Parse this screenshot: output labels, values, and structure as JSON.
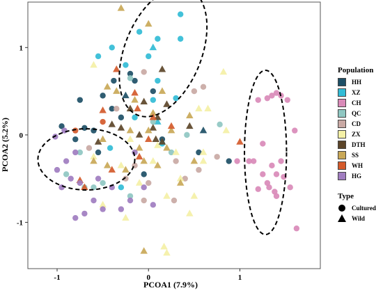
{
  "chart_data": {
    "type": "scatter",
    "xlabel": "PCOA1 (7.9%)",
    "ylabel": "PCOA2 (5.2%)",
    "xlim": [
      -1.32,
      1.88
    ],
    "ylim": [
      -1.53,
      1.52
    ],
    "x_ticks": [
      -1,
      0,
      1
    ],
    "y_ticks": [
      -1,
      0,
      1
    ],
    "grid": false,
    "legend_position": "right",
    "populations": [
      {
        "name": "HH",
        "color": "#1d4f66"
      },
      {
        "name": "XZ",
        "color": "#32bcd6"
      },
      {
        "name": "CH",
        "color": "#d98ab8"
      },
      {
        "name": "QC",
        "color": "#8fc7c2"
      },
      {
        "name": "CD",
        "color": "#c9a9a4"
      },
      {
        "name": "ZX",
        "color": "#f4f0a6"
      },
      {
        "name": "DTH",
        "color": "#5c4529"
      },
      {
        "name": "SS",
        "color": "#c9a857"
      },
      {
        "name": "WH",
        "color": "#d45a2b"
      },
      {
        "name": "HG",
        "color": "#a07dc0"
      }
    ],
    "types": [
      {
        "name": "Cultured",
        "marker": "circle"
      },
      {
        "name": "Wild",
        "marker": "triangle"
      }
    ],
    "ellipses": [
      {
        "cx": 0.16,
        "cy": 0.95,
        "rx": 0.42,
        "ry": 0.78,
        "rotation_deg": 22
      },
      {
        "cx": -0.68,
        "cy": -0.28,
        "rx": 0.53,
        "ry": 0.35,
        "rotation_deg": 0
      },
      {
        "cx": 1.28,
        "cy": -0.2,
        "rx": 0.23,
        "ry": 0.94,
        "rotation_deg": 0
      }
    ],
    "series": [
      {
        "name": "HH",
        "type": "Cultured",
        "points": [
          [
            -0.4,
            0.3
          ],
          [
            -0.15,
            0.62
          ],
          [
            0.05,
            0.5
          ],
          [
            -0.5,
            0.45
          ],
          [
            -0.7,
            0.08
          ],
          [
            -0.95,
            0.1
          ],
          [
            -0.75,
            0.4
          ],
          [
            -0.38,
            0.62
          ],
          [
            -0.05,
            -0.45
          ],
          [
            -0.55,
            -0.2
          ],
          [
            -0.2,
            0.7
          ],
          [
            0.55,
            -0.2
          ],
          [
            0.88,
            -0.3
          ],
          [
            -0.6,
            0.05
          ],
          [
            -0.3,
            0.2
          ],
          [
            0.15,
            -0.05
          ],
          [
            -0.8,
            -0.05
          ]
        ]
      },
      {
        "name": "HH",
        "type": "Wild",
        "points": [
          [
            -0.25,
            0.45
          ],
          [
            0.6,
            0.05
          ]
        ]
      },
      {
        "name": "XZ",
        "type": "Cultured",
        "points": [
          [
            -0.4,
            1.0
          ],
          [
            -0.1,
            1.18
          ],
          [
            0.1,
            1.1
          ],
          [
            0.35,
            1.38
          ],
          [
            -0.25,
            0.8
          ],
          [
            0.1,
            0.62
          ],
          [
            0.3,
            0.42
          ],
          [
            -0.55,
            0.9
          ],
          [
            -0.3,
            -0.6
          ],
          [
            0.35,
            1.1
          ],
          [
            0.0,
            0.9
          ],
          [
            0.05,
            0.4
          ],
          [
            -0.42,
            -0.15
          ],
          [
            -0.15,
            0.2
          ],
          [
            0.15,
            -0.1
          ]
        ]
      },
      {
        "name": "XZ",
        "type": "Wild",
        "points": [
          [
            0.05,
            1.0
          ],
          [
            0.1,
            0.15
          ]
        ]
      },
      {
        "name": "CH",
        "type": "Cultured",
        "points": [
          [
            1.45,
            0.45
          ],
          [
            1.35,
            0.45
          ],
          [
            1.52,
            0.4
          ],
          [
            1.2,
            0.4
          ],
          [
            1.3,
            0.42
          ],
          [
            1.4,
            0.48
          ],
          [
            1.15,
            -0.3
          ],
          [
            1.25,
            -0.45
          ],
          [
            1.35,
            -0.35
          ],
          [
            1.4,
            -0.45
          ],
          [
            1.48,
            -0.48
          ],
          [
            1.3,
            -0.55
          ],
          [
            1.4,
            -0.7
          ],
          [
            1.55,
            -0.6
          ],
          [
            1.6,
            0.05
          ],
          [
            1.62,
            -1.07
          ],
          [
            1.25,
            -0.1
          ],
          [
            1.1,
            -0.3
          ],
          [
            1.45,
            -0.3
          ],
          [
            1.2,
            -0.62
          ],
          [
            1.32,
            -0.6
          ],
          [
            0.97,
            -0.3
          ],
          [
            1.38,
            -0.65
          ]
        ]
      },
      {
        "name": "QC",
        "type": "Cultured",
        "points": [
          [
            -0.9,
            -0.45
          ],
          [
            -0.7,
            -0.6
          ],
          [
            -0.2,
            0.65
          ],
          [
            0.42,
            0.0
          ],
          [
            0.78,
            0.12
          ],
          [
            -0.75,
            -0.2
          ],
          [
            -0.5,
            -0.55
          ],
          [
            -0.2,
            -0.7
          ],
          [
            0.25,
            -0.2
          ],
          [
            0.05,
            0.15
          ],
          [
            -0.6,
            -0.6
          ]
        ]
      },
      {
        "name": "CD",
        "type": "Cultured",
        "points": [
          [
            0.6,
            0.55
          ],
          [
            0.5,
            0.5
          ],
          [
            -0.15,
            -0.35
          ],
          [
            -0.25,
            -0.5
          ],
          [
            0.3,
            -0.3
          ],
          [
            0.55,
            -0.4
          ],
          [
            -0.65,
            -0.15
          ],
          [
            -0.35,
            0.3
          ],
          [
            0.0,
            -0.55
          ],
          [
            -0.05,
            -0.75
          ],
          [
            0.4,
            -0.5
          ],
          [
            0.75,
            -0.25
          ],
          [
            0.28,
            -0.75
          ],
          [
            -0.05,
            0.72
          ]
        ]
      },
      {
        "name": "ZX",
        "type": "Wild",
        "points": [
          [
            -0.6,
            -0.25
          ],
          [
            -0.2,
            -0.05
          ],
          [
            0.1,
            -0.12
          ],
          [
            -0.3,
            -0.35
          ],
          [
            0.05,
            -0.3
          ],
          [
            0.35,
            -0.5
          ],
          [
            0.6,
            -0.2
          ],
          [
            0.45,
            -0.9
          ],
          [
            -0.25,
            -0.95
          ],
          [
            -0.5,
            -0.8
          ],
          [
            0.2,
            -0.7
          ],
          [
            0.85,
            0.05
          ],
          [
            0.5,
            -0.7
          ],
          [
            -0.1,
            -0.55
          ],
          [
            -0.6,
            0.8
          ],
          [
            0.65,
            0.3
          ],
          [
            0.3,
            -0.2
          ],
          [
            0.17,
            -1.28
          ],
          [
            0.2,
            -1.35
          ],
          [
            0.55,
            0.3
          ],
          [
            0.6,
            -0.3
          ],
          [
            0.82,
            0.72
          ]
        ]
      },
      {
        "name": "DTH",
        "type": "Wild",
        "points": [
          [
            -0.3,
            0.08
          ],
          [
            0.05,
            0.08
          ],
          [
            0.15,
            -0.08
          ],
          [
            0.2,
            0.35
          ],
          [
            -0.4,
            0.12
          ],
          [
            -0.05,
            0.38
          ],
          [
            -0.55,
            -0.08
          ],
          [
            0.1,
            0.2
          ],
          [
            -0.1,
            0.0
          ],
          [
            0.15,
            0.75
          ],
          [
            -0.2,
            0.3
          ],
          [
            0.45,
            0.1
          ],
          [
            0.08,
            -0.05
          ]
        ]
      },
      {
        "name": "SS",
        "type": "Wild",
        "points": [
          [
            -0.2,
            0.05
          ],
          [
            -0.1,
            -0.15
          ],
          [
            0.0,
            0.05
          ],
          [
            -0.35,
            0.5
          ],
          [
            -0.45,
            0.55
          ],
          [
            0.2,
            -0.15
          ],
          [
            -0.6,
            -0.3
          ],
          [
            -0.05,
            -0.3
          ],
          [
            0.35,
            -0.55
          ],
          [
            -0.25,
            -0.4
          ],
          [
            0.5,
            -0.3
          ],
          [
            0.45,
            0.22
          ],
          [
            -0.15,
            0.4
          ],
          [
            0.1,
            -0.35
          ],
          [
            0.15,
            0.5
          ],
          [
            -0.45,
            -0.35
          ],
          [
            0.0,
            1.27
          ],
          [
            -0.5,
            -0.05
          ],
          [
            0.25,
            0.05
          ],
          [
            -0.3,
            1.45
          ],
          [
            -0.05,
            -1.33
          ],
          [
            0.05,
            0.25
          ]
        ]
      },
      {
        "name": "WH",
        "type": "Cultured",
        "points": [
          [
            -0.8,
            0.05
          ],
          [
            -0.5,
            0.15
          ]
        ]
      },
      {
        "name": "WH",
        "type": "Wild",
        "points": [
          [
            -0.35,
            0.75
          ],
          [
            -0.12,
            0.3
          ],
          [
            0.05,
            0.2
          ],
          [
            -0.4,
            -0.4
          ],
          [
            -0.7,
            -0.6
          ],
          [
            -0.15,
            0.48
          ],
          [
            1.0,
            -0.08
          ],
          [
            0.0,
            -0.05
          ],
          [
            0.25,
            0.1
          ],
          [
            -0.5,
            0.28
          ],
          [
            -0.75,
            -0.52
          ],
          [
            -0.1,
            -0.25
          ]
        ]
      },
      {
        "name": "HG",
        "type": "Cultured",
        "points": [
          [
            -1.0,
            -0.4
          ],
          [
            -0.9,
            -0.3
          ],
          [
            -1.02,
            -0.02
          ],
          [
            -0.85,
            -0.5
          ],
          [
            -0.95,
            -0.6
          ],
          [
            -0.6,
            -0.75
          ],
          [
            -0.5,
            -0.85
          ],
          [
            -0.7,
            -0.9
          ],
          [
            -0.3,
            -0.85
          ],
          [
            -0.15,
            -0.2
          ],
          [
            -0.05,
            -0.6
          ],
          [
            0.05,
            -0.8
          ],
          [
            -0.75,
            -0.55
          ],
          [
            -0.55,
            -0.5
          ],
          [
            -0.8,
            -0.2
          ],
          [
            -0.92,
            0.05
          ],
          [
            -0.4,
            -0.6
          ],
          [
            -0.8,
            -0.95
          ],
          [
            -0.2,
            -0.75
          ]
        ]
      }
    ]
  }
}
